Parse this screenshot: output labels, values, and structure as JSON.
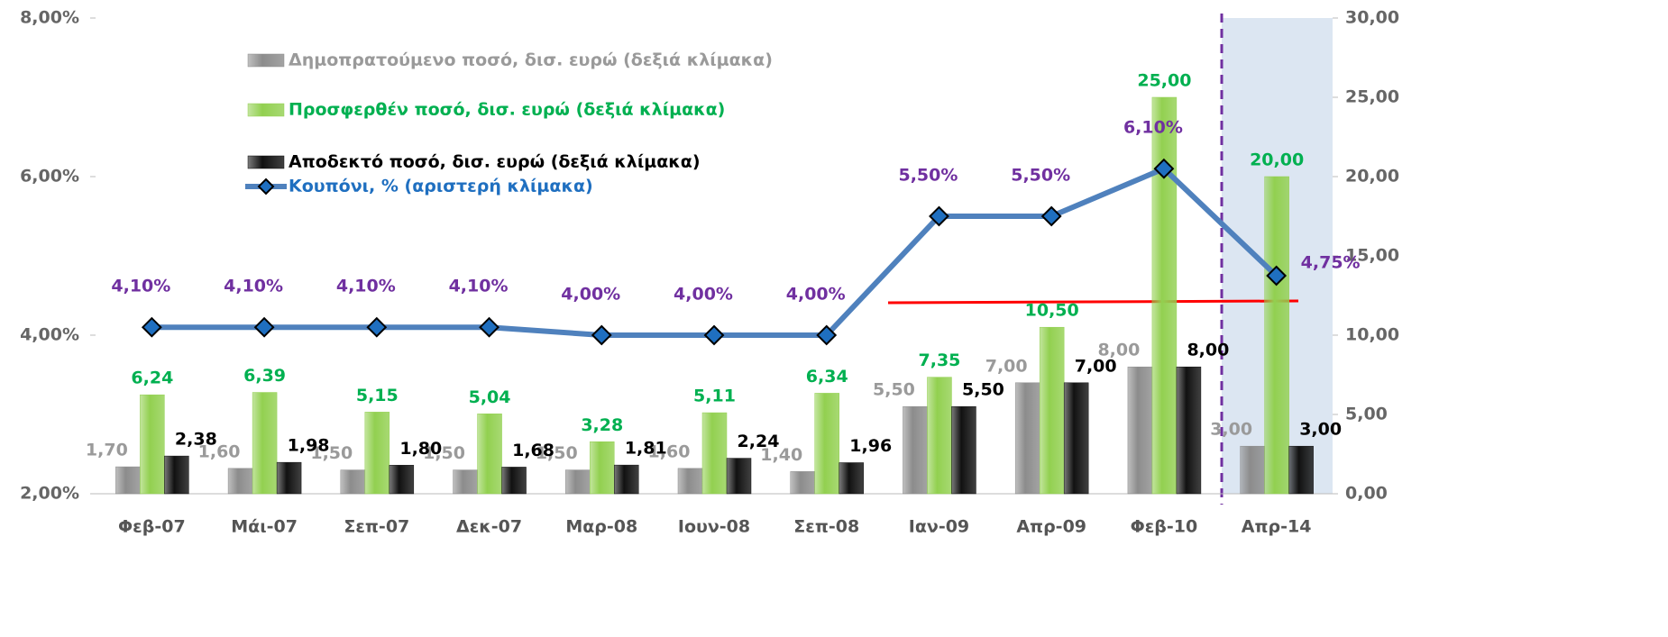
{
  "chart_data": {
    "type": "bar-line",
    "categories": [
      "Φεβ-07",
      "Μάι-07",
      "Σεπ-07",
      "Δεκ-07",
      "Μαρ-08",
      "Ιουν-08",
      "Σεπ-08",
      "Ιαν-09",
      "Απρ-09",
      "Φεβ-10",
      "Απρ-14"
    ],
    "ylim": [
      2,
      8
    ],
    "yticks": [
      {
        "value": 2,
        "label": "2,00%"
      },
      {
        "value": 4,
        "label": "4,00%"
      },
      {
        "value": 6,
        "label": "6,00%"
      },
      {
        "value": 8,
        "label": "8,00%"
      }
    ],
    "y2lim": [
      0,
      30
    ],
    "y2ticks": [
      {
        "value": 0,
        "label": "0,00"
      },
      {
        "value": 5,
        "label": "5,00"
      },
      {
        "value": 10,
        "label": "10,00"
      },
      {
        "value": 15,
        "label": "15,00"
      },
      {
        "value": 20,
        "label": "20,00"
      },
      {
        "value": 25,
        "label": "25,00"
      },
      {
        "value": 30,
        "label": "30,00"
      }
    ],
    "series": [
      {
        "name": "Δημοπρατούμενο ποσό, δισ. ευρώ (δεξιά κλίμακα)",
        "type": "bar",
        "axis": "y2",
        "color": "#8c8c8c",
        "label_color": "#9a9a9a",
        "values": [
          1.7,
          1.6,
          1.5,
          1.5,
          1.5,
          1.6,
          1.4,
          5.5,
          7,
          8,
          3
        ],
        "value_labels": [
          "1,70",
          "1,60",
          "1,50",
          "1,50",
          "1,50",
          "1,60",
          "1,40",
          "5,50",
          "7,00",
          "8,00",
          "3,00"
        ]
      },
      {
        "name": "Προσφερθέν ποσό, δισ. ευρώ (δεξιά κλίμακα)",
        "type": "bar",
        "axis": "y2",
        "color": "#92d050",
        "label_color": "#00b050",
        "values": [
          6.24,
          6.39,
          5.15,
          5.04,
          3.28,
          5.11,
          6.34,
          7.35,
          10.5,
          25,
          20
        ],
        "value_labels": [
          "6,24",
          "6,39",
          "5,15",
          "5,04",
          "3,28",
          "5,11",
          "6,34",
          "7,35",
          "10,50",
          "25,00",
          "20,00"
        ]
      },
      {
        "name": "Αποδεκτό ποσό, δισ. ευρώ (δεξιά κλίμακα)",
        "type": "bar",
        "axis": "y2",
        "color": "#111111",
        "label_color": "#000000",
        "values": [
          2.38,
          1.98,
          1.8,
          1.68,
          1.81,
          2.24,
          1.96,
          5.5,
          7,
          8,
          3
        ],
        "value_labels": [
          "2,38",
          "1,98",
          "1,80",
          "1,68",
          "1,81",
          "2,24",
          "1,96",
          "5,50",
          "7,00",
          "8,00",
          "3,00"
        ]
      },
      {
        "name": "Κουπόνι, % (αριστερή κλίμακα)",
        "type": "line",
        "axis": "y",
        "color": "#4f81bd",
        "label_color": "#7030a0",
        "values": [
          4.1,
          4.1,
          4.1,
          4.1,
          4,
          4,
          4,
          5.5,
          5.5,
          6.1,
          4.75
        ],
        "value_labels": [
          "4,10%",
          "4,10%",
          "4,10%",
          "4,10%",
          "4,00%",
          "4,00%",
          "4,00%",
          "5,50%",
          "5,50%",
          "6,10%",
          "4,75%"
        ]
      }
    ]
  }
}
